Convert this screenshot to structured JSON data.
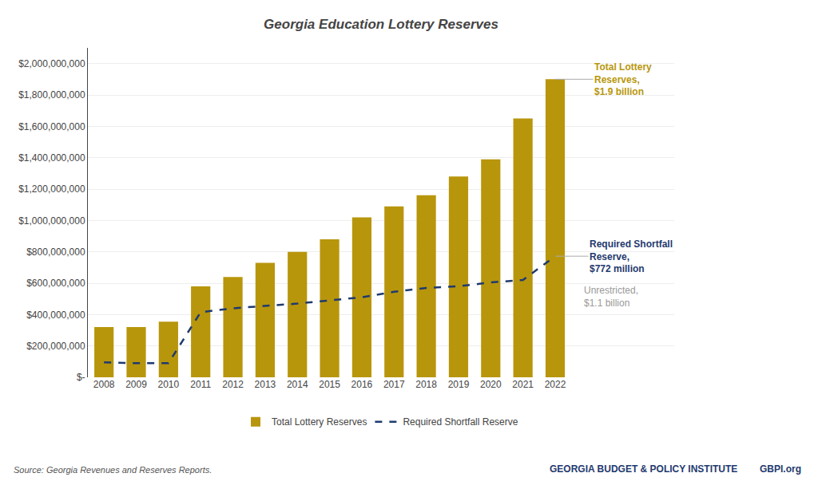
{
  "chart_data": {
    "type": "bar",
    "title": "Georgia Education Lottery Reserves",
    "categories": [
      "2008",
      "2009",
      "2010",
      "2011",
      "2012",
      "2013",
      "2014",
      "2015",
      "2016",
      "2017",
      "2018",
      "2019",
      "2020",
      "2021",
      "2022"
    ],
    "series": [
      {
        "name": "Total Lottery Reserves",
        "type": "bar",
        "color": "#B8960C",
        "values": [
          320000000,
          320000000,
          355000000,
          580000000,
          640000000,
          730000000,
          800000000,
          880000000,
          1020000000,
          1090000000,
          1160000000,
          1280000000,
          1390000000,
          1650000000,
          1900000000
        ]
      },
      {
        "name": "Required Shortfall Reserve",
        "type": "line",
        "color": "#1F3A6E",
        "line_style": "dash",
        "values": [
          95000000,
          90000000,
          90000000,
          415000000,
          440000000,
          455000000,
          470000000,
          490000000,
          510000000,
          545000000,
          570000000,
          580000000,
          605000000,
          620000000,
          772000000
        ]
      }
    ],
    "ylim": [
      0,
      2100000000
    ],
    "yticks": [
      {
        "value": 0,
        "label": "$-"
      },
      {
        "value": 200000000,
        "label": "$200,000,000"
      },
      {
        "value": 400000000,
        "label": "$400,000,000"
      },
      {
        "value": 600000000,
        "label": "$600,000,000"
      },
      {
        "value": 800000000,
        "label": "$800,000,000"
      },
      {
        "value": 1000000000,
        "label": "$1,000,000,000"
      },
      {
        "value": 1200000000,
        "label": "$1,200,000,000"
      },
      {
        "value": 1400000000,
        "label": "$1,400,000,000"
      },
      {
        "value": 1600000000,
        "label": "$1,600,000,000"
      },
      {
        "value": 1800000000,
        "label": "$1,800,000,000"
      },
      {
        "value": 2000000000,
        "label": "$2,000,000,000"
      }
    ],
    "grid": true,
    "legend": "bottom",
    "annotations": [
      {
        "text": "Total Lottery\nReserves,\n$1.9 billion",
        "color": "#B8960C"
      },
      {
        "text": "Required Shortfall\nReserve,\n$772 million",
        "color": "#1F3A6E"
      },
      {
        "text": "Unrestricted,\n$1.1 billion",
        "color": "#999999"
      }
    ],
    "source": "Source: Georgia Revenues and Reserves Reports.",
    "footer": "GEORGIA BUDGET & POLICY INSTITUTE",
    "footer_domain": "GBPI.org"
  }
}
